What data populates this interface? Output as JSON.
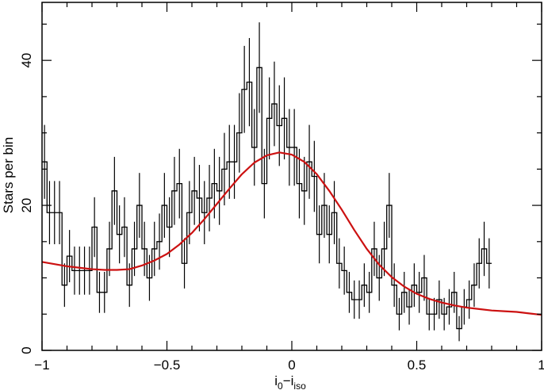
{
  "chart_data": {
    "type": "line",
    "title": "",
    "xlabel": {
      "base": "i",
      "sub1": "0",
      "dash": "−i",
      "sub2": "iso"
    },
    "ylabel": "Stars per bin",
    "xlim": [
      -1,
      1
    ],
    "ylim": [
      0,
      48
    ],
    "x_ticks": [
      -1,
      -0.5,
      0,
      0.5,
      1
    ],
    "x_tick_labels": [
      "−1",
      "−0.5",
      "0",
      "0.5",
      "1"
    ],
    "y_ticks": [
      0,
      20,
      40
    ],
    "y_tick_labels": [
      "0",
      "20",
      "40"
    ],
    "grid": false,
    "legend": "none",
    "series": [
      {
        "kind": "histogram-with-errorbars",
        "color": "#000000",
        "bin_width": 0.02,
        "x_start": -1,
        "values": [
          26,
          19,
          19,
          19,
          9,
          13,
          11,
          11,
          11,
          11,
          17,
          8,
          8,
          14,
          22,
          16,
          17,
          9,
          14,
          20,
          14,
          10,
          14,
          15,
          20,
          17,
          22,
          23,
          12,
          19,
          22,
          21,
          19,
          21,
          23,
          22,
          25,
          26,
          26,
          30,
          36,
          37,
          28,
          39,
          23,
          32,
          34,
          31,
          32,
          28,
          28,
          23,
          22,
          26,
          24,
          16,
          20,
          16,
          19,
          12,
          11,
          8,
          7,
          7,
          9,
          8,
          14,
          10,
          14,
          20,
          9,
          5,
          8,
          6,
          9,
          8,
          10,
          5,
          5,
          7,
          5,
          6,
          8,
          3,
          6,
          7,
          9,
          12,
          14,
          12
        ]
      },
      {
        "kind": "fit-curve",
        "color": "#cc1111",
        "x": [
          -1,
          -0.95,
          -0.9,
          -0.85,
          -0.8,
          -0.75,
          -0.7,
          -0.65,
          -0.6,
          -0.55,
          -0.5,
          -0.45,
          -0.4,
          -0.35,
          -0.3,
          -0.25,
          -0.2,
          -0.15,
          -0.1,
          -0.05,
          0,
          0.05,
          0.1,
          0.15,
          0.2,
          0.25,
          0.3,
          0.35,
          0.4,
          0.45,
          0.5,
          0.55,
          0.6,
          0.65,
          0.7,
          0.75,
          0.8,
          0.85,
          0.9,
          0.95,
          1
        ],
        "y": [
          12.2,
          11.9,
          11.6,
          11.4,
          11.2,
          11.1,
          11.1,
          11.2,
          11.7,
          12.4,
          13.3,
          14.6,
          16.2,
          18.1,
          20.2,
          22.3,
          24.3,
          25.9,
          26.9,
          27.3,
          27.0,
          26.0,
          24.3,
          22.0,
          19.4,
          16.6,
          14.0,
          11.8,
          10.1,
          8.8,
          7.8,
          7.1,
          6.6,
          6.2,
          5.9,
          5.7,
          5.5,
          5.4,
          5.3,
          5.1,
          4.9
        ]
      }
    ]
  }
}
